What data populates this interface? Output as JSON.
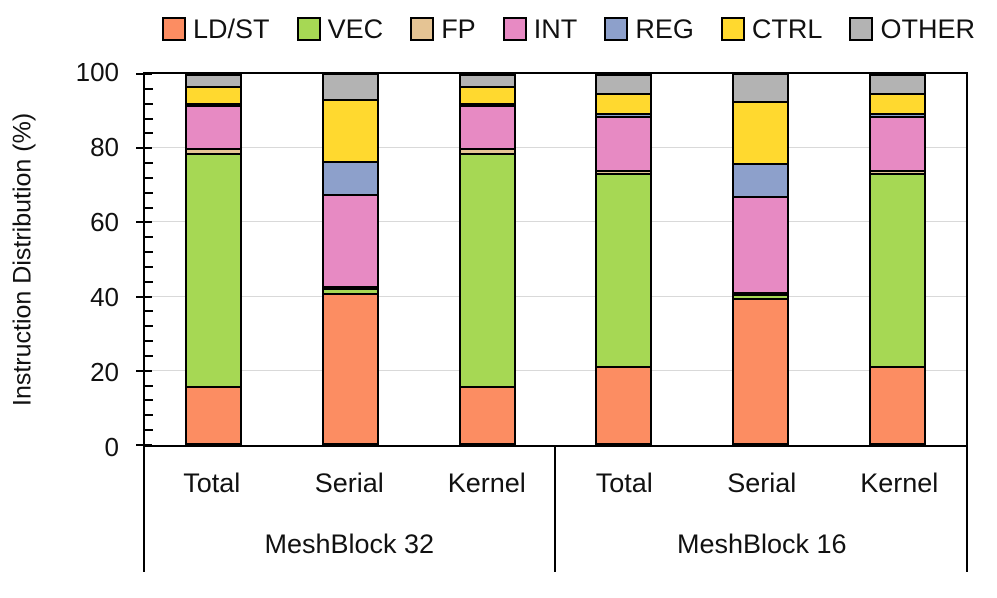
{
  "chart_data": {
    "type": "bar",
    "stacked": true,
    "title": "",
    "ylabel": "Instruction Distribution (%)",
    "xlabel": "",
    "ylim": [
      0,
      100
    ],
    "ytick_major": 20,
    "ytick_minor": 4,
    "ytick_labels": [
      "0",
      "20",
      "40",
      "60",
      "80",
      "100"
    ],
    "grid": "horizontal-major",
    "legend_position": "top",
    "groups": [
      "MeshBlock 32",
      "MeshBlock 16"
    ],
    "categories": [
      "Total",
      "Serial",
      "Kernel",
      "Total",
      "Serial",
      "Kernel"
    ],
    "series": [
      {
        "name": "LD/ST",
        "color": "#FC8D62",
        "values": [
          15.5,
          41.0,
          15.5,
          21.0,
          39.5,
          21.0
        ]
      },
      {
        "name": "VEC",
        "color": "#A6D854",
        "values": [
          63.5,
          1.3,
          63.5,
          52.5,
          1.2,
          52.5
        ]
      },
      {
        "name": "FP",
        "color": "#E5C494",
        "values": [
          1.5,
          0.3,
          1.5,
          1.0,
          0.3,
          1.0
        ]
      },
      {
        "name": "INT",
        "color": "#E78AC3",
        "values": [
          11.5,
          25.0,
          11.5,
          14.5,
          26.0,
          14.5
        ]
      },
      {
        "name": "REG",
        "color": "#8DA0CB",
        "values": [
          0.5,
          9.0,
          0.5,
          1.0,
          9.0,
          1.0
        ]
      },
      {
        "name": "CTRL",
        "color": "#FFD92F",
        "values": [
          4.8,
          16.9,
          4.8,
          5.5,
          17.0,
          5.5
        ]
      },
      {
        "name": "OTHER",
        "color": "#B3B3B3",
        "values": [
          2.7,
          6.5,
          2.7,
          4.5,
          7.0,
          4.5
        ]
      }
    ],
    "colors": {
      "axis": "#000000",
      "gridline": "#d9d9d9",
      "bar_border": "#000000",
      "text": "#111111",
      "background": "#ffffff"
    }
  }
}
